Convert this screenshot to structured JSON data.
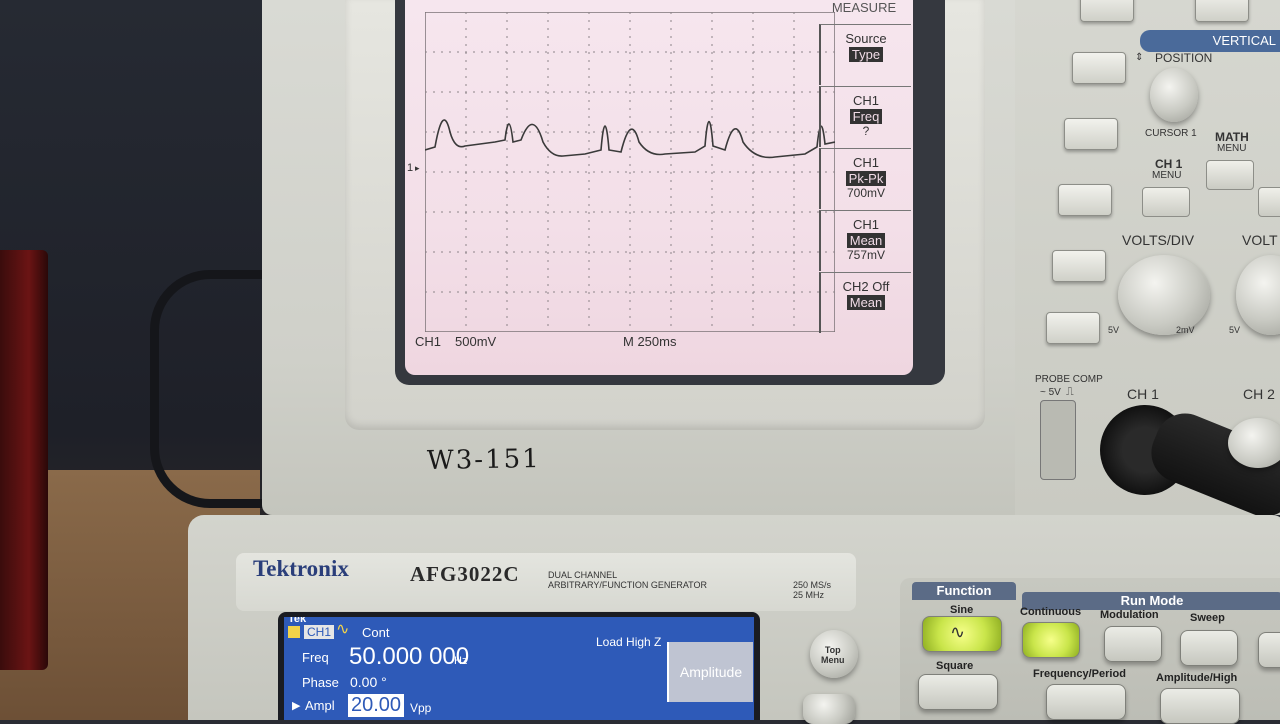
{
  "oscilloscope": {
    "measure_title": "MEASURE",
    "menu": [
      {
        "line1": "Source",
        "highlight": "Type",
        "value": ""
      },
      {
        "line1": "CH1",
        "highlight": "Freq",
        "value": "?"
      },
      {
        "line1": "CH1",
        "highlight": "Pk-Pk",
        "value": "700mV"
      },
      {
        "line1": "CH1",
        "highlight": "Mean",
        "value": "757mV"
      },
      {
        "line1": "CH2 Off",
        "highlight": "Mean",
        "value": ""
      }
    ],
    "status": {
      "channel": "CH1",
      "volts": "500mV",
      "timebase": "M 250ms"
    },
    "ground_marker": "1",
    "handwritten_label": "W3-151",
    "panel_labels": {
      "vertical": "VERTICAL",
      "position": "POSITION",
      "cursor1": "CURSOR 1",
      "math_menu": "MATH\nMENU",
      "ch1_menu": "CH 1\nMENU",
      "volts_div": "VOLTS/DIV",
      "volts_div_2": "VOLT",
      "probe_comp": "PROBE COMP",
      "probe_comp_level": "~ 5V",
      "ch1": "CH 1",
      "ch2": "CH 2",
      "range_low": "5V",
      "range_high": "2mV",
      "range_low_2": "5V"
    }
  },
  "generator": {
    "brand": "Tektronix",
    "model": "AFG3022C",
    "description": "DUAL CHANNEL\nARBITRARY/FUNCTION GENERATOR",
    "rate": "250 MS/s\n25 MHz",
    "screen": {
      "logo": "Tek",
      "channel": "CH1",
      "mode": "Cont",
      "load": "Load High Z",
      "freq_label": "Freq",
      "freq_value": "50.000 000",
      "freq_unit": "Hz",
      "phase_label": "Phase",
      "phase_value": "0.00 °",
      "ampl_label": "Ampl",
      "ampl_value": "20.00",
      "ampl_unit": "Vpp",
      "softkey": "Amplitude"
    },
    "top_menu": "Top\nMenu",
    "function_title": "Function",
    "function_sine": "Sine",
    "function_square": "Square",
    "run_mode_title": "Run Mode",
    "run_continuous": "Continuous",
    "run_modulation": "Modulation",
    "run_sweep": "Sweep",
    "freq_period": "Frequency/Period",
    "ampl_high": "Amplitude/High"
  },
  "colors": {
    "screen_bg": "#f3dfe8",
    "trace": "#3a3a3a",
    "afg_screen": "#2e5ab8",
    "brand_blue": "#2a3e7a",
    "lit_button": "#d6f04a"
  },
  "icons": [
    "sine-wave-icon",
    "square-wave-icon",
    "arrow-right-icon"
  ]
}
